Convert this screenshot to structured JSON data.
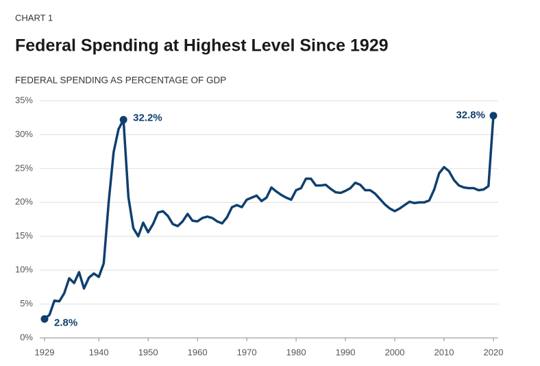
{
  "chart_data": {
    "type": "line",
    "eyebrow": "CHART 1",
    "title": "Federal Spending at Highest Level Since 1929",
    "subtitle": "FEDERAL SPENDING AS PERCENTAGE OF GDP",
    "x": [
      1929,
      1930,
      1931,
      1932,
      1933,
      1934,
      1935,
      1936,
      1937,
      1938,
      1939,
      1940,
      1941,
      1942,
      1943,
      1944,
      1945,
      1946,
      1947,
      1948,
      1949,
      1950,
      1951,
      1952,
      1953,
      1954,
      1955,
      1956,
      1957,
      1958,
      1959,
      1960,
      1961,
      1962,
      1963,
      1964,
      1965,
      1966,
      1967,
      1968,
      1969,
      1970,
      1971,
      1972,
      1973,
      1974,
      1975,
      1976,
      1977,
      1978,
      1979,
      1980,
      1981,
      1982,
      1983,
      1984,
      1985,
      1986,
      1987,
      1988,
      1989,
      1990,
      1991,
      1992,
      1993,
      1994,
      1995,
      1996,
      1997,
      1998,
      1999,
      2000,
      2001,
      2002,
      2003,
      2004,
      2005,
      2006,
      2007,
      2008,
      2009,
      2010,
      2011,
      2012,
      2013,
      2014,
      2015,
      2016,
      2017,
      2018,
      2019,
      2020
    ],
    "values": [
      2.8,
      3.4,
      5.5,
      5.4,
      6.6,
      8.8,
      8.1,
      9.7,
      7.3,
      8.9,
      9.5,
      9.0,
      11.0,
      20.0,
      27.4,
      30.8,
      32.2,
      20.8,
      16.2,
      15.0,
      17.0,
      15.6,
      16.8,
      18.5,
      18.7,
      18.0,
      16.8,
      16.5,
      17.2,
      18.3,
      17.3,
      17.2,
      17.7,
      17.9,
      17.7,
      17.2,
      16.9,
      17.8,
      19.3,
      19.6,
      19.3,
      20.4,
      20.7,
      21.0,
      20.2,
      20.7,
      22.2,
      21.6,
      21.1,
      20.7,
      20.4,
      21.8,
      22.1,
      23.5,
      23.5,
      22.5,
      22.5,
      22.6,
      22.0,
      21.5,
      21.4,
      21.7,
      22.1,
      22.9,
      22.6,
      21.8,
      21.8,
      21.3,
      20.5,
      19.7,
      19.1,
      18.7,
      19.1,
      19.6,
      20.1,
      19.9,
      20.0,
      20.0,
      20.3,
      21.9,
      24.3,
      25.2,
      24.6,
      23.3,
      22.5,
      22.2,
      22.1,
      22.1,
      21.8,
      21.9,
      22.4,
      32.8
    ],
    "value_labels": [
      "2.8%",
      null,
      null,
      null,
      null,
      null,
      null,
      null,
      null,
      null,
      null,
      null,
      null,
      null,
      null,
      null,
      "32.2%",
      null,
      null,
      null,
      null,
      null,
      null,
      null,
      null,
      null,
      null,
      null,
      null,
      null,
      null,
      null,
      null,
      null,
      null,
      null,
      null,
      null,
      null,
      null,
      null,
      null,
      null,
      null,
      null,
      null,
      null,
      null,
      null,
      null,
      null,
      null,
      null,
      null,
      null,
      null,
      null,
      null,
      null,
      null,
      null,
      null,
      null,
      null,
      null,
      null,
      null,
      null,
      null,
      null,
      null,
      null,
      null,
      null,
      null,
      null,
      null,
      null,
      null,
      null,
      null,
      null,
      null,
      null,
      null,
      null,
      null,
      null,
      null,
      null,
      null,
      "32.8%"
    ],
    "color": "#0f3f6e",
    "xlim": [
      1929,
      2020
    ],
    "xticks": [
      1929,
      1940,
      1950,
      1960,
      1970,
      1980,
      1990,
      2000,
      2010,
      2020
    ],
    "ylim": [
      0,
      35
    ],
    "yticks": [
      {
        "value": 0,
        "label": "0%"
      },
      {
        "value": 5,
        "label": "5%"
      },
      {
        "value": 10,
        "label": "10%"
      },
      {
        "value": 15,
        "label": "15%"
      },
      {
        "value": 20,
        "label": "20%"
      },
      {
        "value": 25,
        "label": "25%"
      },
      {
        "value": 30,
        "label": "30%"
      },
      {
        "value": 35,
        "label": "35%"
      }
    ],
    "grid": true
  }
}
